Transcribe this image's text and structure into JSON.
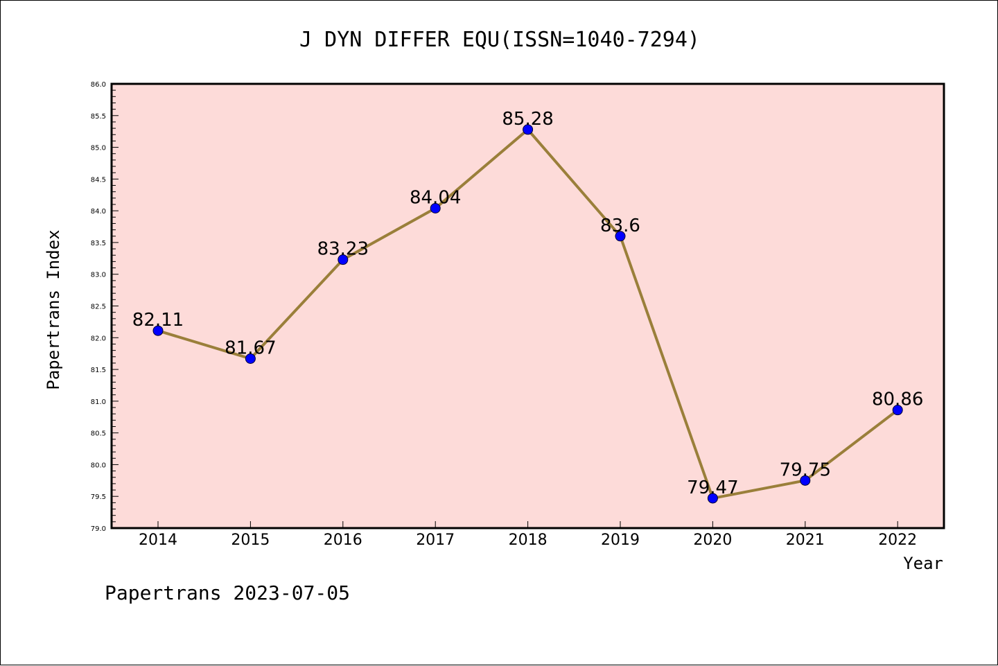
{
  "chart_data": {
    "type": "line",
    "title": "J DYN DIFFER EQU(ISSN=1040-7294)",
    "xlabel": "Year",
    "ylabel": "Papertrans Index",
    "categories": [
      "2014",
      "2015",
      "2016",
      "2017",
      "2018",
      "2019",
      "2020",
      "2021",
      "2022"
    ],
    "values": [
      82.11,
      81.67,
      83.23,
      84.04,
      85.28,
      83.6,
      79.47,
      79.75,
      80.86
    ],
    "data_labels": [
      "82.11",
      "81.67",
      "83.23",
      "84.04",
      "85.28",
      "83.6",
      "79.47",
      "79.75",
      "80.86"
    ],
    "ylim": [
      79.0,
      86.0
    ],
    "yticks": [
      "79.0",
      "79.5",
      "80.0",
      "80.5",
      "81.0",
      "81.5",
      "82.0",
      "82.5",
      "83.0",
      "83.5",
      "84.0",
      "84.5",
      "85.0",
      "85.5",
      "86.0"
    ],
    "grid": false,
    "colors": {
      "plot_background": "#fddbd9",
      "line": "#9a7f3a",
      "marker": "#0000ff"
    }
  },
  "footer": "Papertrans 2023-07-05"
}
